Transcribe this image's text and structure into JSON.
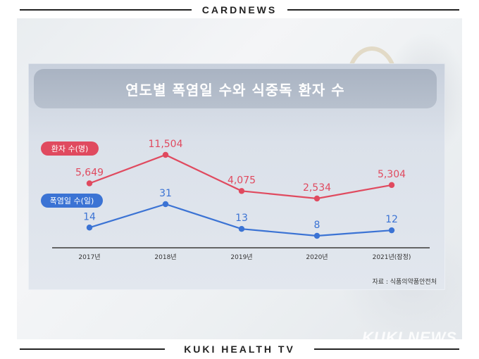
{
  "header": {
    "label": "CARDNEWS"
  },
  "footer": {
    "label": "KUKI HEALTH TV"
  },
  "watermark": "KUKI NEWS",
  "source": "자료 : 식품의약품안전처",
  "colors": {
    "patients": "#e04a5f",
    "days": "#3b73d4",
    "axis": "#3a3a3a"
  },
  "chart_data": {
    "type": "line",
    "title": "연도별 폭염일 수와 식중독 환자 수",
    "categories": [
      "2017년",
      "2018년",
      "2019년",
      "2020년",
      "2021년(잠정)"
    ],
    "series": [
      {
        "name": "환자 수(명)",
        "values": [
          5649,
          11504,
          4075,
          2534,
          5304
        ],
        "labels": [
          "5,649",
          "11,504",
          "4,075",
          "2,534",
          "5,304"
        ]
      },
      {
        "name": "폭염일 수(일)",
        "values": [
          14,
          31,
          13,
          8,
          12
        ],
        "labels": [
          "14",
          "31",
          "13",
          "8",
          "12"
        ]
      }
    ],
    "grid": false,
    "legend": "left"
  }
}
